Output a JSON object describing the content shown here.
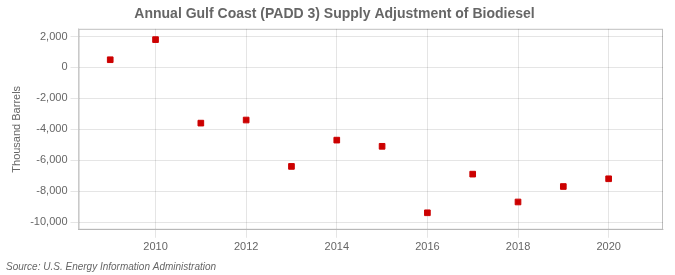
{
  "chart_data": {
    "type": "scatter",
    "title": "Annual Gulf Coast (PADD 3) Supply Adjustment of Biodiesel",
    "ylabel": "Thousand Barrels",
    "annotations": [
      "Source: U.S. Energy Information Administration"
    ],
    "x": [
      2009,
      2010,
      2011,
      2012,
      2013,
      2014,
      2015,
      2016,
      2017,
      2018,
      2019,
      2020
    ],
    "values": [
      500,
      1800,
      -3600,
      -3400,
      -6400,
      -4700,
      -5100,
      -9400,
      -6900,
      -8700,
      -7700,
      -7200
    ],
    "color": "#cc0000",
    "marker": "square",
    "xlim": [
      2008.3,
      2021.2
    ],
    "xticks": [
      2010,
      2012,
      2014,
      2016,
      2018,
      2020
    ],
    "ylim": [
      -10500,
      2500
    ],
    "yticks": [
      {
        "value": -10000,
        "label": "-10,000"
      },
      {
        "value": -8000,
        "label": "-8,000"
      },
      {
        "value": -6000,
        "label": "-6,000"
      },
      {
        "value": -4000,
        "label": "-4,000"
      },
      {
        "value": -2000,
        "label": "-2,000"
      },
      0,
      {
        "value": 2000,
        "label": "2,000"
      }
    ],
    "grid": true
  }
}
